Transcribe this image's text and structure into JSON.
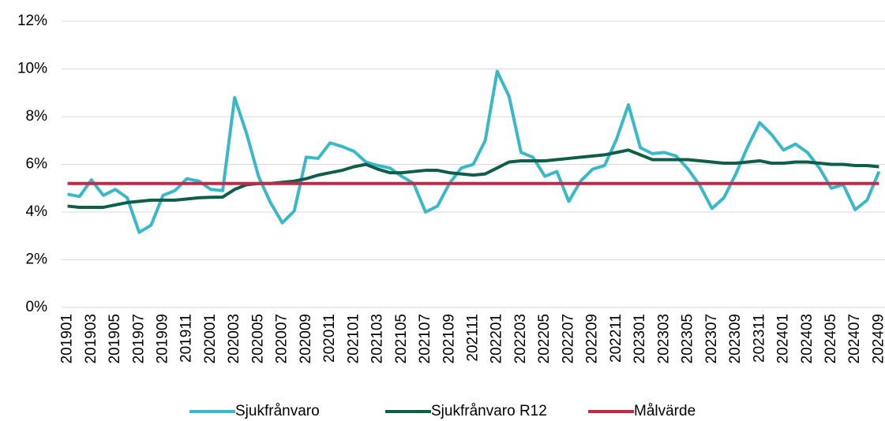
{
  "chart_data": {
    "type": "line",
    "categories": [
      "201901",
      null,
      "201903",
      null,
      "201905",
      null,
      "201907",
      null,
      "201909",
      null,
      "201911",
      null,
      "202001",
      null,
      "202003",
      null,
      "202005",
      null,
      "202007",
      null,
      "202009",
      null,
      "202011",
      null,
      "202101",
      null,
      "202103",
      null,
      "202105",
      null,
      "202107",
      null,
      "202109",
      null,
      "202111",
      null,
      "202201",
      null,
      "202203",
      null,
      "202205",
      null,
      "202207",
      null,
      "202209",
      null,
      "202211",
      null,
      "202301",
      null,
      "202303",
      null,
      "202305",
      null,
      "202307",
      null,
      "202309",
      null,
      "202311",
      null,
      "202401",
      null,
      "202403",
      null,
      "202405",
      null,
      "202407",
      null,
      "202409"
    ],
    "series": [
      {
        "name": "Sjukfrånvaro",
        "color": "#3ab8c8",
        "values": [
          4.75,
          4.65,
          5.35,
          4.7,
          4.95,
          4.6,
          3.15,
          3.45,
          4.7,
          4.9,
          5.4,
          5.3,
          4.95,
          4.9,
          8.8,
          7.3,
          5.5,
          4.4,
          3.55,
          4.05,
          6.3,
          6.25,
          6.9,
          6.75,
          6.55,
          6.1,
          5.95,
          5.85,
          5.5,
          5.2,
          4.0,
          4.25,
          5.2,
          5.85,
          6.0,
          7.0,
          9.9,
          8.85,
          6.5,
          6.3,
          5.5,
          5.7,
          4.45,
          5.3,
          5.8,
          5.95,
          7.05,
          8.5,
          6.7,
          6.45,
          6.5,
          6.35,
          5.8,
          5.1,
          4.15,
          4.6,
          5.6,
          6.75,
          7.75,
          7.25,
          6.6,
          6.85,
          6.5,
          5.85,
          5.0,
          5.15,
          4.1,
          4.5,
          5.7
        ]
      },
      {
        "name": "Sjukfrånvaro R12",
        "color": "#0f5e4a",
        "values": [
          4.25,
          4.2,
          4.2,
          4.2,
          4.3,
          4.4,
          4.45,
          4.5,
          4.5,
          4.5,
          4.55,
          4.6,
          4.62,
          4.63,
          4.95,
          5.15,
          5.2,
          5.2,
          5.25,
          5.3,
          5.4,
          5.55,
          5.65,
          5.75,
          5.9,
          6.0,
          5.8,
          5.65,
          5.65,
          5.7,
          5.75,
          5.75,
          5.65,
          5.6,
          5.55,
          5.6,
          5.85,
          6.1,
          6.15,
          6.15,
          6.15,
          6.2,
          6.25,
          6.3,
          6.35,
          6.4,
          6.5,
          6.6,
          6.4,
          6.2,
          6.2,
          6.2,
          6.2,
          6.15,
          6.1,
          6.05,
          6.05,
          6.1,
          6.15,
          6.05,
          6.05,
          6.1,
          6.1,
          6.05,
          6.0,
          6.0,
          5.95,
          5.95,
          5.9
        ]
      },
      {
        "name": "Målvärde",
        "color": "#c0294a",
        "values": [
          5.2,
          5.2,
          5.2,
          5.2,
          5.2,
          5.2,
          5.2,
          5.2,
          5.2,
          5.2,
          5.2,
          5.2,
          5.2,
          5.2,
          5.2,
          5.2,
          5.2,
          5.2,
          5.2,
          5.2,
          5.2,
          5.2,
          5.2,
          5.2,
          5.2,
          5.2,
          5.2,
          5.2,
          5.2,
          5.2,
          5.2,
          5.2,
          5.2,
          5.2,
          5.2,
          5.2,
          5.2,
          5.2,
          5.2,
          5.2,
          5.2,
          5.2,
          5.2,
          5.2,
          5.2,
          5.2,
          5.2,
          5.2,
          5.2,
          5.2,
          5.2,
          5.2,
          5.2,
          5.2,
          5.2,
          5.2,
          5.2,
          5.2,
          5.2,
          5.2,
          5.2,
          5.2,
          5.2,
          5.2,
          5.2,
          5.2,
          5.2,
          5.2,
          5.2
        ]
      }
    ],
    "ylim": [
      0,
      12
    ],
    "yticks": [
      {
        "value": 0,
        "label": "0%"
      },
      {
        "value": 2,
        "label": "2%"
      },
      {
        "value": 4,
        "label": "4%"
      },
      {
        "value": 6,
        "label": "6%"
      },
      {
        "value": 8,
        "label": "8%"
      },
      {
        "value": 10,
        "label": "10%"
      },
      {
        "value": 12,
        "label": "12%"
      }
    ],
    "grid": true,
    "legend": "bottom"
  }
}
